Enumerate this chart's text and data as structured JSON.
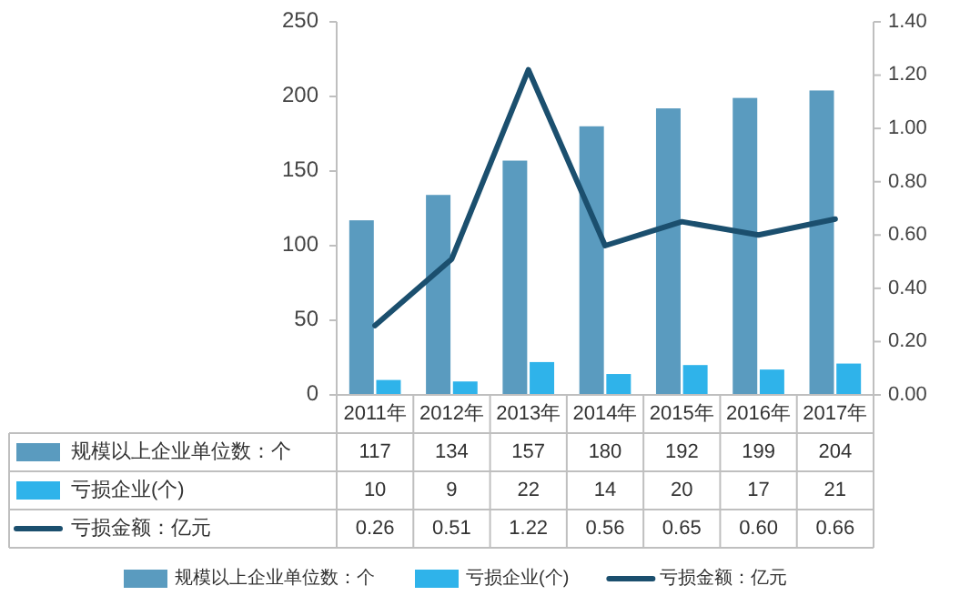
{
  "chart_data": {
    "type": "bar",
    "categories": [
      "2011年",
      "2012年",
      "2013年",
      "2014年",
      "2015年",
      "2016年",
      "2017年"
    ],
    "series": [
      {
        "name": "规模以上企业单位数：个",
        "color": "#5a9bbf",
        "values": [
          117,
          134,
          157,
          180,
          192,
          199,
          204
        ]
      },
      {
        "name": "亏损企业(个)",
        "color": "#2fb3ea",
        "values": [
          10,
          9,
          22,
          14,
          20,
          17,
          21
        ]
      },
      {
        "name": "亏损金额：亿元",
        "color": "#1b4f6e",
        "type": "line",
        "axis": "y2",
        "values": [
          0.26,
          0.51,
          1.22,
          0.56,
          0.65,
          0.6,
          0.66
        ],
        "value_labels": [
          "0.26",
          "0.51",
          "1.22",
          "0.56",
          "0.65",
          "0.60",
          "0.66"
        ]
      }
    ],
    "ylim": [
      0,
      250
    ],
    "yticks": [
      0,
      50,
      100,
      150,
      200,
      250
    ],
    "y2lim": [
      0,
      1.4
    ],
    "y2ticks": [
      {
        "value": 0,
        "label": "0.00"
      },
      {
        "value": 0.2,
        "label": "0.20"
      },
      {
        "value": 0.4,
        "label": "0.40"
      },
      {
        "value": 0.6,
        "label": "0.60"
      },
      {
        "value": 0.8,
        "label": "0.80"
      },
      {
        "value": 1.0,
        "label": "1.00"
      },
      {
        "value": 1.2,
        "label": "1.20"
      },
      {
        "value": 1.4,
        "label": "1.40"
      }
    ],
    "data_labels": true,
    "legend": "bottom"
  }
}
